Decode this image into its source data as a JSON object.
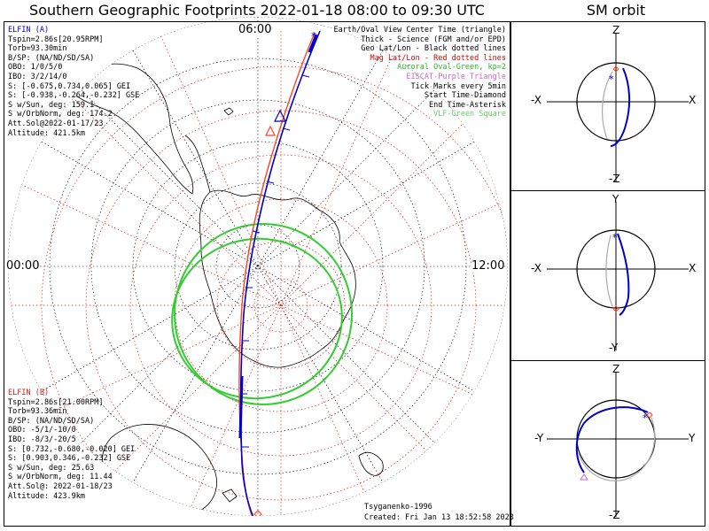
{
  "title": "Southern Geographic Footprints 2022-01-18 08:00 to 09:30 UTC",
  "sm_title": "SM orbit",
  "clock_labels": {
    "top": "06:00",
    "left": "00:00",
    "right": "12:00"
  },
  "elfin_a": {
    "color": "#0000cc",
    "lines": [
      "ELFIN (A)",
      "Tspin=2.86s[20.95RPM]",
      "Torb=93.30min",
      "B/SP: (NA/ND/SD/SA)",
      "OBO: 1/0/5/0",
      "IBO: 3/2/14/0",
      "S: [-0.675,0.734,0.065] GEI",
      "S: [-0.938,-0.264,-0.232] GSE",
      "S w/Sun, deg: 159.1",
      "S w/OrbNorm, deg: 174.2",
      "Att.Sol@2022-01-17/23",
      "Altitude: 421.5km"
    ]
  },
  "elfin_b": {
    "color": "#cc2222",
    "lines": [
      "ELFIN (B)",
      "Tspin=2.86s[21.00RPM]",
      "Torb=93.36min",
      "B/SP: (NA/ND/SD/SA)",
      "OBO: -5/1/-10/0",
      "IBO: -8/3/-20/5",
      "S: [0.732,-0.680,-0.020] GEI",
      "S: [0.903,0.346,-0.232] GSE",
      "S w/Sun, deg: 25.63",
      "S w/OrbNorm, deg: 11.44",
      "Att.Sol@: 2022-01-18/23",
      "Altitude: 423.9km"
    ]
  },
  "legend": [
    {
      "text": "Earth/Oval View Center Time (triangle)",
      "color": "#000000"
    },
    {
      "text": "Thick - Science (FGM and/or EPD)",
      "color": "#000000"
    },
    {
      "text": "Geo Lat/Lon - Black dotted lines",
      "color": "#000000"
    },
    {
      "text": "Mag Lat/Lon - Red dotted lines",
      "color": "#dd0000"
    },
    {
      "text": "Auroral Oval-Green, kp=2",
      "color": "#22bb22"
    },
    {
      "text": "EISCAT-Purple Triangle",
      "color": "#cc66cc"
    },
    {
      "text": "Tick Marks every 5min",
      "color": "#000000"
    },
    {
      "text": "Start Time-Diamond",
      "color": "#000000"
    },
    {
      "text": "End Time-Asterisk",
      "color": "#000000"
    },
    {
      "text": "VLF-Green Square",
      "color": "#66cc66"
    }
  ],
  "credit": "Tsyganenko-1996",
  "created": "Created: Fri Jan 13 18:52:58 2023",
  "sm_panels": [
    {
      "top": "Z",
      "bottom": "-Z",
      "left": "-X",
      "right": "X"
    },
    {
      "top": "Y",
      "bottom": "-Y",
      "left": "-X",
      "right": "X"
    },
    {
      "top": "Z",
      "bottom": "-Z",
      "left": "-Y",
      "right": "Y"
    }
  ],
  "colors": {
    "elfin_a_track": "#0000cc",
    "elfin_b_track": "#ff4422",
    "oval": "#33cc33",
    "geo_grid": "#000000",
    "mag_grid": "#dd0000",
    "coast": "#000000",
    "sm_gray": "#aaaaaa"
  }
}
